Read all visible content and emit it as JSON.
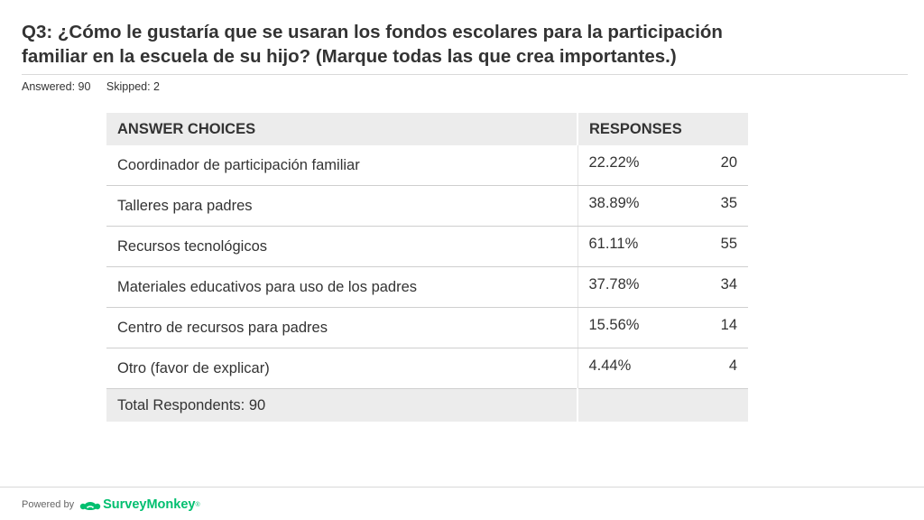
{
  "question": {
    "line1": "Q3: ¿Cómo le gustaría que se usaran los fondos escolares para la participación",
    "line2": "familiar en la escuela de su hijo? (Marque todas las que crea importantes.)"
  },
  "stats": {
    "answered": "Answered: 90",
    "skipped": "Skipped: 2"
  },
  "table": {
    "headers": {
      "choices": "ANSWER CHOICES",
      "responses": "RESPONSES"
    },
    "rows": [
      {
        "choice": "Coordinador de participación familiar",
        "percent": "22.22%",
        "count": "20"
      },
      {
        "choice": "Talleres para padres",
        "percent": "38.89%",
        "count": "35"
      },
      {
        "choice": "Recursos tecnológicos",
        "percent": "61.11%",
        "count": "55"
      },
      {
        "choice": "Materiales educativos para uso de los padres",
        "percent": "37.78%",
        "count": "34"
      },
      {
        "choice": "Centro de recursos para padres",
        "percent": "15.56%",
        "count": "14"
      },
      {
        "choice": "Otro (favor de explicar)",
        "percent": "4.44%",
        "count": "4"
      }
    ],
    "total": "Total Respondents: 90"
  },
  "footer": {
    "powered_by": "Powered by",
    "brand": "SurveyMonkey",
    "trademark": "®",
    "brand_color": "#00bf6f"
  }
}
